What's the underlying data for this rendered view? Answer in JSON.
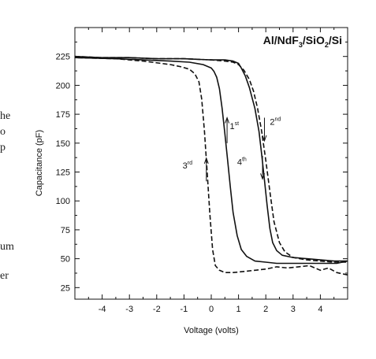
{
  "side_text": [
    "he",
    "o",
    "p",
    "um",
    "er"
  ],
  "chart_data": {
    "type": "line",
    "title": "Al/NdF3/SiO2/Si",
    "title_parts": {
      "p1": "Al/NdF",
      "s1": "3",
      "p2": "/SiO",
      "s2": "2",
      "p3": "/Si"
    },
    "xlabel": "Voltage (volts)",
    "ylabel": "Capacitance (pF)",
    "xlim": [
      -5,
      5
    ],
    "ylim": [
      15,
      250
    ],
    "xticks": [
      -4,
      -3,
      -2,
      -1,
      0,
      1,
      2,
      3,
      4
    ],
    "yticks": [
      25,
      50,
      75,
      100,
      125,
      150,
      175,
      200,
      225
    ],
    "annotations": [
      {
        "base": "1",
        "sup": "st",
        "x": 0.68,
        "y": 162
      },
      {
        "base": "2",
        "sup": "nd",
        "x": 2.15,
        "y": 166
      },
      {
        "base": "3",
        "sup": "rd",
        "x": -1.05,
        "y": 128
      },
      {
        "base": "4",
        "sup": "th",
        "x": 0.95,
        "y": 131
      }
    ],
    "arrows": [
      {
        "x": 0.58,
        "y_from": 150,
        "y_to": 172
      },
      {
        "x": 1.95,
        "y_from": 172,
        "y_to": 152
      },
      {
        "x": -0.18,
        "y_from": 117,
        "y_to": 137
      },
      {
        "x": 1.88,
        "y_from": 139,
        "y_to": 119
      }
    ],
    "series": [
      {
        "style": "solid",
        "x": [
          -5,
          -4,
          -3,
          -2,
          -1,
          0,
          0.5,
          0.8,
          1.0,
          1.1,
          1.25,
          1.4,
          1.6,
          1.75,
          1.85,
          1.95,
          2.05,
          2.15,
          2.25,
          2.4,
          2.6,
          3.0,
          3.5,
          4.0,
          4.5,
          5.0
        ],
        "y": [
          225,
          224,
          224,
          223,
          223,
          222,
          222,
          221,
          219,
          215,
          208,
          198,
          180,
          160,
          140,
          118,
          96,
          76,
          64,
          57,
          53,
          51,
          50,
          49,
          48,
          48
        ]
      },
      {
        "style": "dashed",
        "x": [
          -5,
          -4,
          -3,
          -2,
          -1,
          0,
          0.5,
          0.8,
          1.0,
          1.2,
          1.4,
          1.55,
          1.7,
          1.85,
          2.0,
          2.15,
          2.3,
          2.5,
          2.7,
          3.0,
          3.5,
          4.0,
          4.5,
          5.0
        ],
        "y": [
          225,
          224,
          224,
          223,
          223,
          222,
          221,
          220,
          218,
          213,
          205,
          195,
          180,
          160,
          135,
          108,
          82,
          64,
          56,
          51,
          49,
          48,
          47,
          47
        ]
      },
      {
        "style": "solid",
        "x": [
          5.0,
          4.6,
          4.2,
          3.6,
          3.0,
          2.4,
          2.0,
          1.6,
          1.3,
          1.1,
          0.95,
          0.8,
          0.7,
          0.6,
          0.5,
          0.4,
          0.3,
          0.2,
          0.1,
          0.0,
          -0.3,
          -0.8,
          -1.5,
          -2.5,
          -3.5,
          -5.0
        ],
        "y": [
          48,
          46,
          46,
          46,
          46,
          46,
          47,
          48,
          52,
          58,
          70,
          90,
          112,
          135,
          158,
          180,
          197,
          207,
          212,
          215,
          218,
          220,
          221,
          222,
          223,
          224
        ]
      },
      {
        "style": "dashed",
        "x": [
          5.0,
          4.6,
          4.3,
          4.0,
          3.6,
          3.2,
          2.8,
          2.4,
          2.0,
          1.6,
          1.2,
          0.8,
          0.5,
          0.3,
          0.15,
          0.05,
          -0.05,
          -0.15,
          -0.25,
          -0.35,
          -0.45,
          -0.6,
          -0.8,
          -1.1,
          -1.5,
          -2.5,
          -3.5,
          -5.0
        ],
        "y": [
          36,
          38,
          42,
          40,
          44,
          43,
          42,
          43,
          41,
          40,
          39,
          38,
          38,
          40,
          44,
          58,
          88,
          125,
          160,
          188,
          203,
          210,
          214,
          216,
          218,
          221,
          223,
          224
        ]
      }
    ]
  }
}
